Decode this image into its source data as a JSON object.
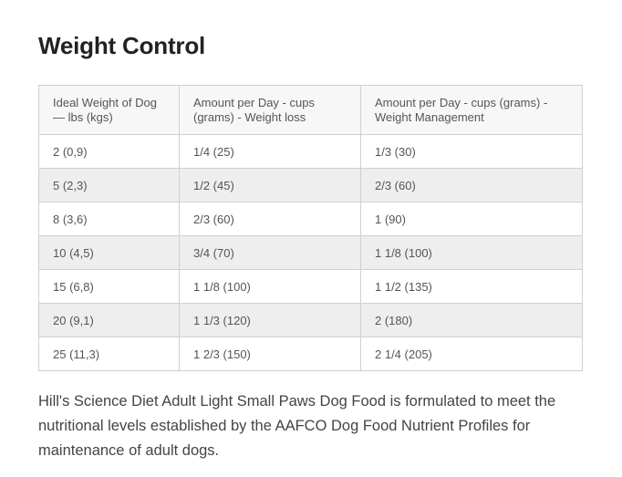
{
  "title": "Weight Control",
  "table": {
    "headers": [
      "Ideal Weight of Dog — lbs (kgs)",
      "Amount per Day - cups (grams) - Weight loss",
      "Amount per Day - cups (grams) - Weight Management"
    ],
    "rows": [
      [
        "2 (0,9)",
        "1/4 (25)",
        "1/3 (30)"
      ],
      [
        "5 (2,3)",
        "1/2 (45)",
        "2/3 (60)"
      ],
      [
        "8 (3,6)",
        "2/3 (60)",
        "1 (90)"
      ],
      [
        "10 (4,5)",
        "3/4 (70)",
        "1 1/8 (100)"
      ],
      [
        "15 (6,8)",
        "1 1/8 (100)",
        "1 1/2 (135)"
      ],
      [
        "20 (9,1)",
        "1 1/3 (120)",
        "2 (180)"
      ],
      [
        "25 (11,3)",
        "1 2/3 (150)",
        "2 1/4 (205)"
      ]
    ]
  },
  "description": "Hill's Science Diet Adult Light Small Paws Dog Food is formulated to meet the nutritional levels established by the AAFCO Dog Food Nutrient Profiles for maintenance of adult dogs."
}
